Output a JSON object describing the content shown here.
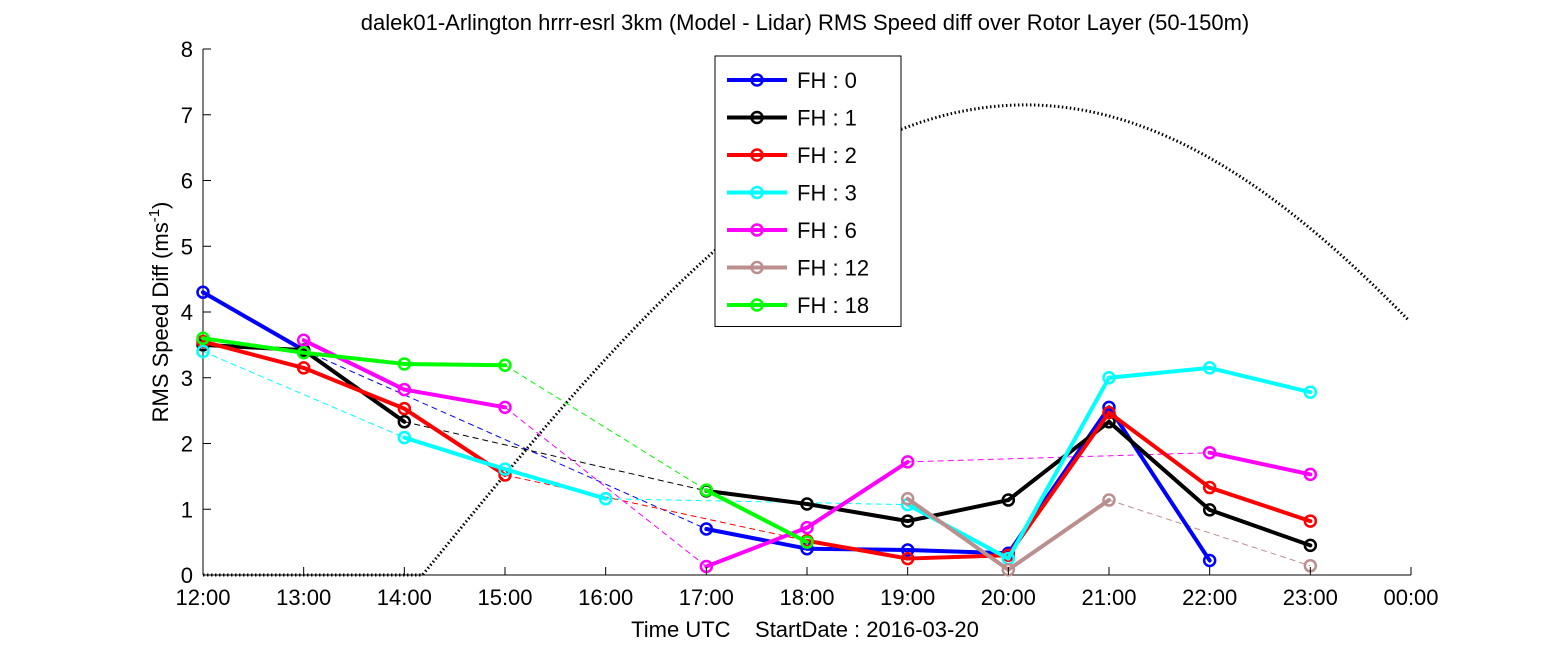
{
  "chart_data": {
    "type": "line",
    "title": "dalek01-Arlington hrrr-esrl 3km (Model - Lidar) RMS Speed diff over Rotor Layer (50-150m)",
    "xlabel": "Time UTC    StartDate : 2016-03-20",
    "ylabel_main": "RMS Speed Diff (ms",
    "ylabel_sup": "-1",
    "ylabel_tail": ")",
    "x_ticks": [
      "12:00",
      "13:00",
      "14:00",
      "15:00",
      "16:00",
      "17:00",
      "18:00",
      "19:00",
      "20:00",
      "21:00",
      "22:00",
      "23:00",
      "00:00"
    ],
    "xlim": [
      12,
      24
    ],
    "ylim": [
      0,
      8
    ],
    "y_ticks": [
      "0",
      "1",
      "2",
      "3",
      "4",
      "5",
      "6",
      "7",
      "8"
    ],
    "legend_position": "top-center",
    "series": [
      {
        "name": "FH : 0",
        "color": "#0000ff",
        "x": [
          12,
          13,
          14,
          15,
          16,
          17,
          18,
          19,
          20,
          21,
          22,
          23
        ],
        "y": [
          4.3,
          3.42,
          null,
          null,
          null,
          0.7,
          0.4,
          0.38,
          0.33,
          2.55,
          0.22,
          null
        ]
      },
      {
        "name": "FH : 1",
        "color": "#000000",
        "x": [
          12,
          13,
          14,
          15,
          16,
          17,
          18,
          19,
          20,
          21,
          22,
          23
        ],
        "y": [
          3.5,
          3.42,
          2.33,
          null,
          null,
          1.28,
          1.08,
          0.82,
          1.14,
          2.33,
          0.99,
          0.45
        ]
      },
      {
        "name": "FH : 2",
        "color": "#ff0000",
        "x": [
          12,
          13,
          14,
          15,
          16,
          17,
          18,
          19,
          20,
          21,
          22,
          23
        ],
        "y": [
          3.55,
          3.15,
          2.53,
          1.52,
          null,
          null,
          0.52,
          0.25,
          0.3,
          2.47,
          1.33,
          0.82
        ]
      },
      {
        "name": "FH : 3",
        "color": "#00ffff",
        "x": [
          12,
          13,
          14,
          15,
          16,
          17,
          18,
          19,
          20,
          21,
          22,
          23
        ],
        "y": [
          3.4,
          null,
          2.09,
          1.61,
          1.16,
          null,
          null,
          1.07,
          0.25,
          3.0,
          3.15,
          2.78
        ]
      },
      {
        "name": "FH : 6",
        "color": "#ff00ff",
        "x": [
          12,
          13,
          14,
          15,
          16,
          17,
          18,
          19,
          20,
          21,
          22,
          23
        ],
        "y": [
          null,
          3.57,
          2.82,
          2.55,
          null,
          0.13,
          0.72,
          1.72,
          null,
          null,
          1.86,
          1.53
        ]
      },
      {
        "name": "FH : 12",
        "color": "#bc8f8f",
        "x": [
          12,
          13,
          14,
          15,
          16,
          17,
          18,
          19,
          20,
          21,
          22,
          23
        ],
        "y": [
          null,
          null,
          null,
          null,
          null,
          null,
          null,
          1.16,
          0.08,
          1.14,
          null,
          0.14
        ]
      },
      {
        "name": "FH : 18",
        "color": "#00ff00",
        "x": [
          12,
          13,
          14,
          15,
          16,
          17,
          18,
          19,
          20,
          21,
          22,
          23
        ],
        "y": [
          3.6,
          3.38,
          3.21,
          3.19,
          null,
          1.29,
          0.5,
          null,
          null,
          null,
          null,
          null
        ]
      }
    ],
    "sun_curve_style": "dotted",
    "sun_curve_color": "#000000"
  }
}
